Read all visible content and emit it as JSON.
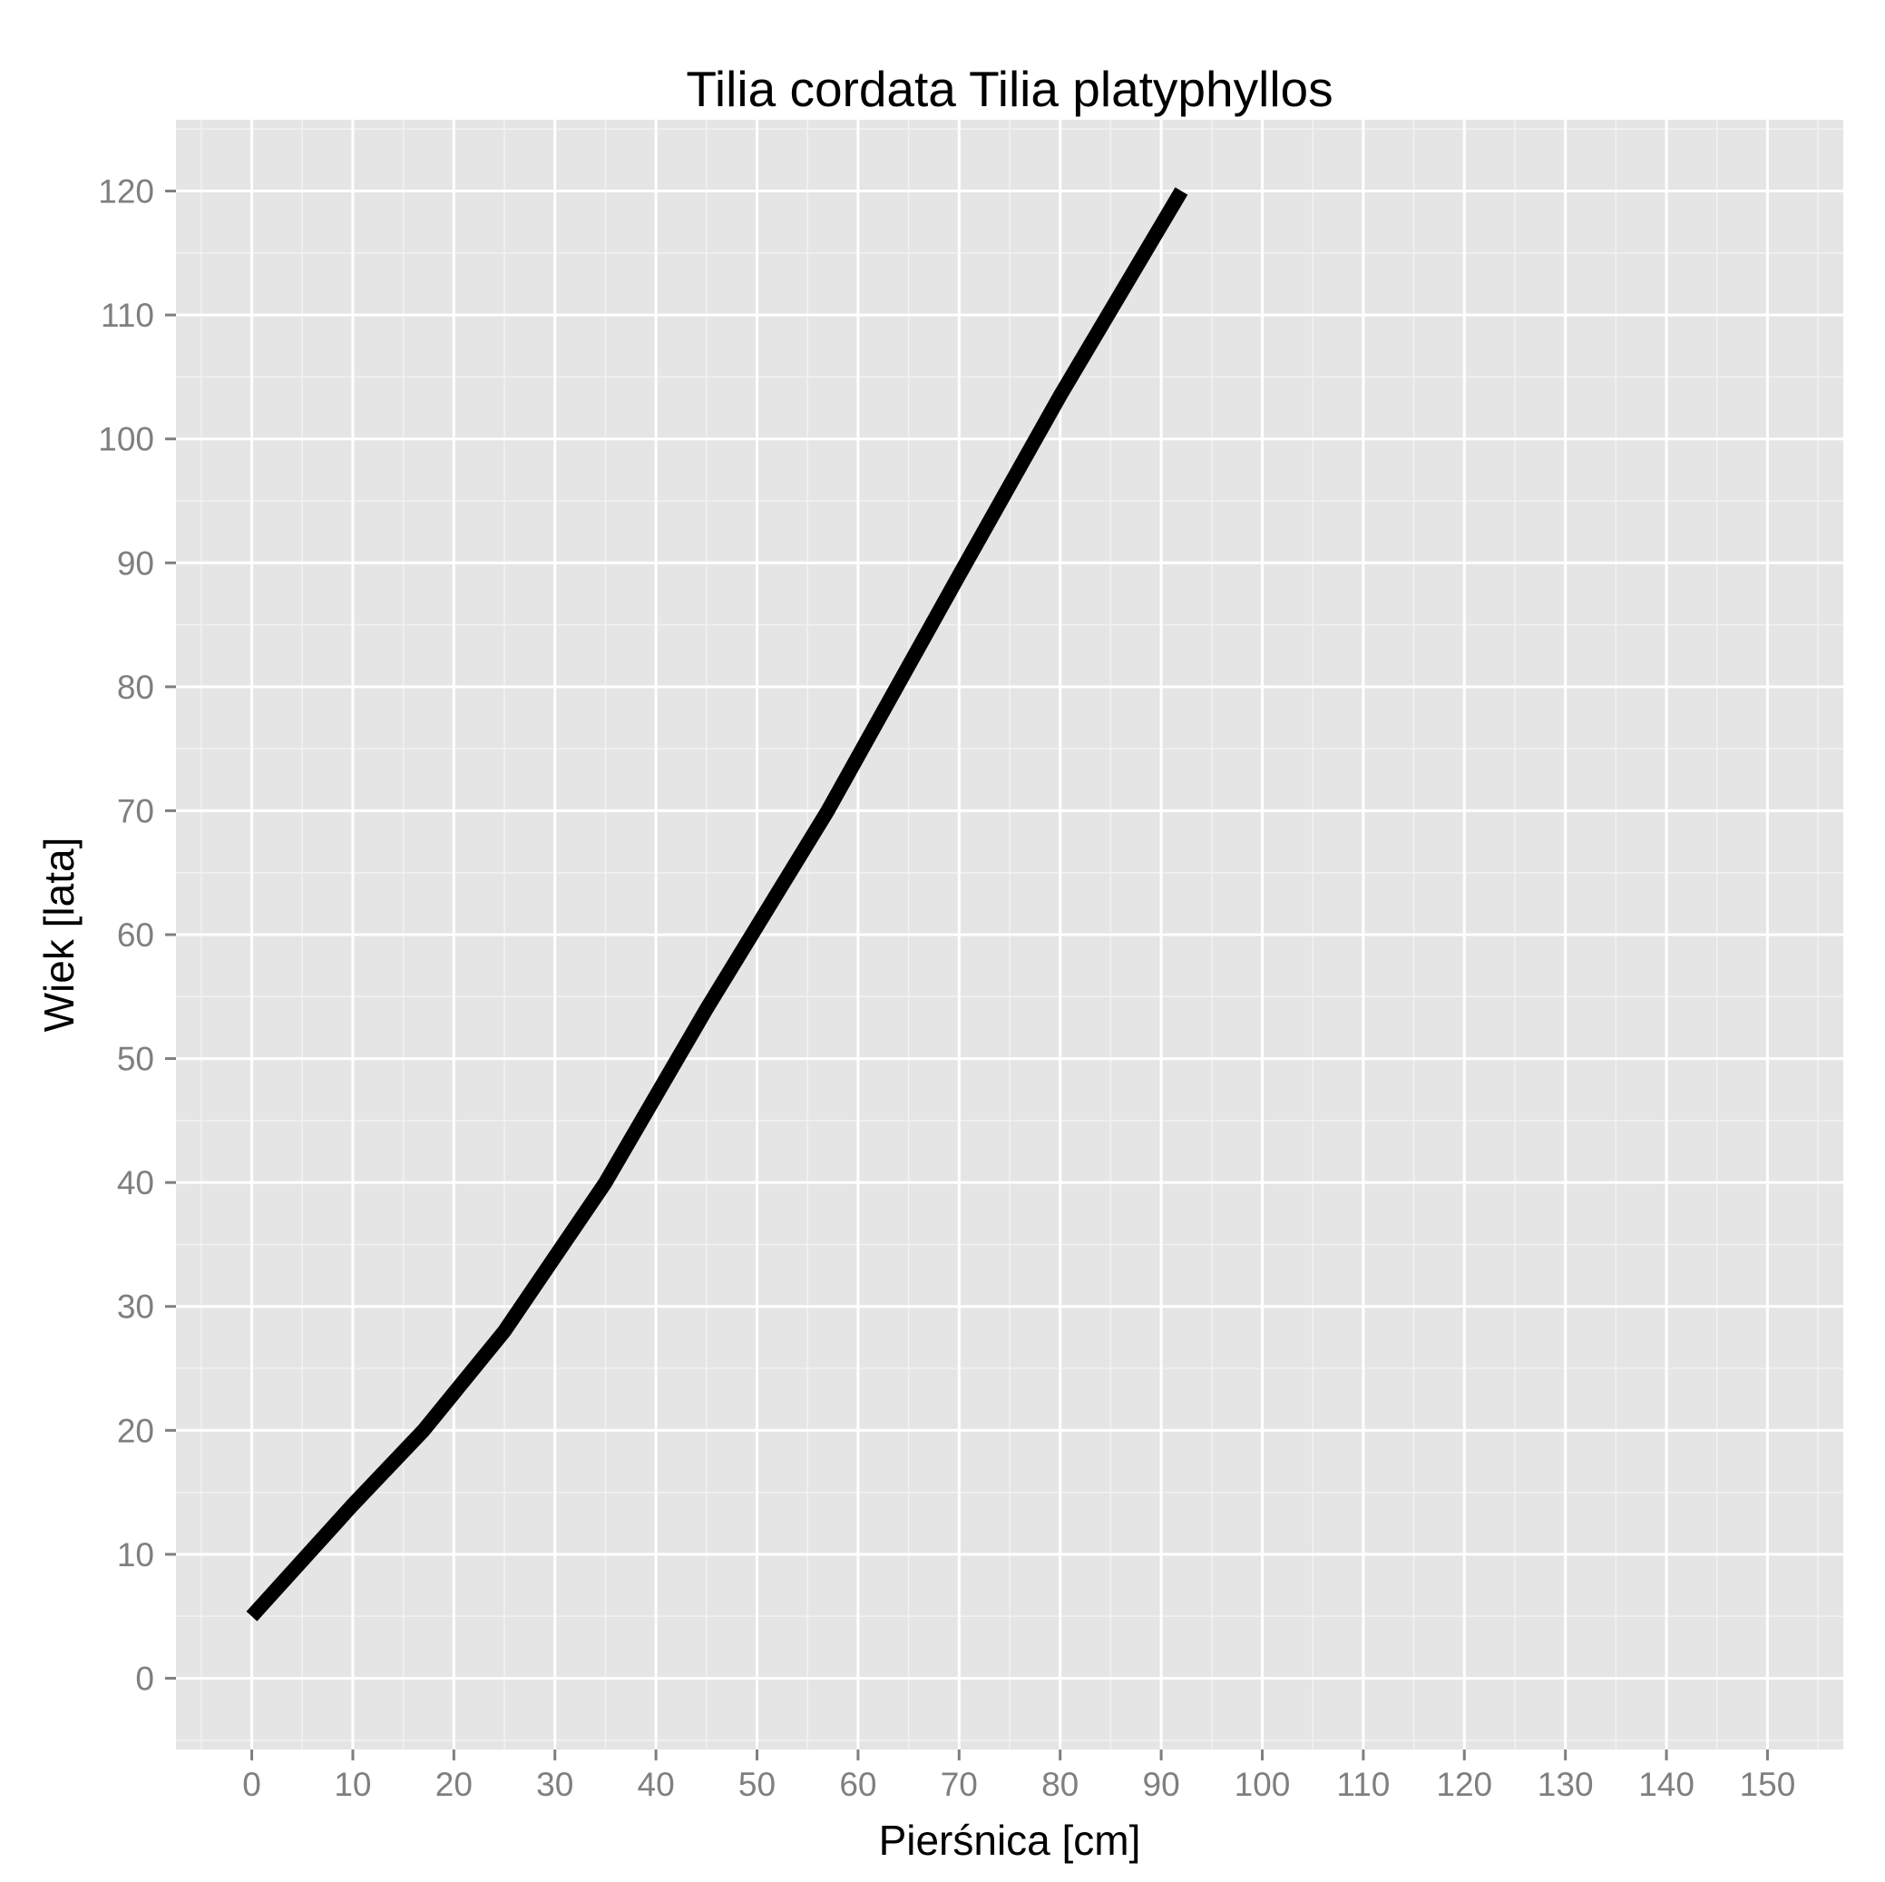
{
  "chart_data": {
    "type": "line",
    "title": "Tilia cordata Tilia platyphyllos",
    "xlabel": "Pierśnica [cm]",
    "ylabel": "Wiek [lata]",
    "xlim": [
      -7.5,
      157.5
    ],
    "ylim": [
      -5.75,
      125.75
    ],
    "x_ticks": [
      "0",
      "10",
      "20",
      "30",
      "40",
      "50",
      "60",
      "70",
      "80",
      "90",
      "100",
      "110",
      "120",
      "130",
      "140",
      "150"
    ],
    "y_ticks": [
      "0",
      "10",
      "20",
      "30",
      "40",
      "50",
      "60",
      "70",
      "80",
      "90",
      "100",
      "110",
      "120"
    ],
    "grid": true,
    "legend": "none",
    "series": [
      {
        "color": "#000000",
        "x": [
          0,
          5,
          10,
          17,
          25,
          35,
          45,
          57,
          70,
          80,
          92
        ],
        "y": [
          5,
          9.5,
          14,
          20,
          28,
          40,
          54,
          70,
          89,
          103.5,
          120
        ]
      }
    ]
  }
}
